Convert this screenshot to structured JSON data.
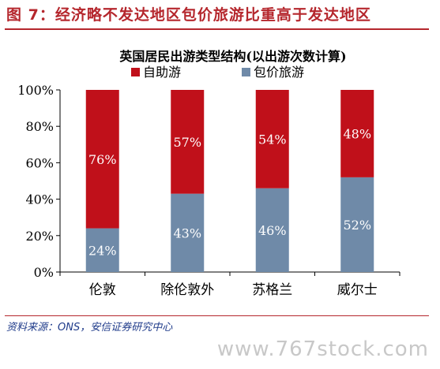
{
  "figure_title": "图 7：经济略不发达地区包价旅游比重高于发达地区",
  "source": "资料来源：ONS，安信证券研究中心",
  "watermark": "www.767stock.com",
  "chart_data": {
    "type": "bar",
    "stacked": true,
    "title": "英国居民出游类型结构(以出游次数计算)",
    "categories": [
      "伦敦",
      "除伦敦外",
      "苏格兰",
      "威尔士"
    ],
    "series": [
      {
        "name": "包价旅游",
        "values": [
          24,
          43,
          46,
          52
        ],
        "color": "#6f8aa8"
      },
      {
        "name": "自助游",
        "values": [
          76,
          57,
          54,
          48
        ],
        "color": "#c0101a"
      }
    ],
    "ylim": [
      0,
      100
    ],
    "yticks": [
      "0%",
      "20%",
      "40%",
      "60%",
      "80%",
      "100%"
    ],
    "ytick_values": [
      0,
      20,
      40,
      60,
      80,
      100
    ],
    "value_suffix": "%",
    "legend": {
      "position": "top",
      "order": [
        "自助游",
        "包价旅游"
      ]
    },
    "grid": false
  }
}
